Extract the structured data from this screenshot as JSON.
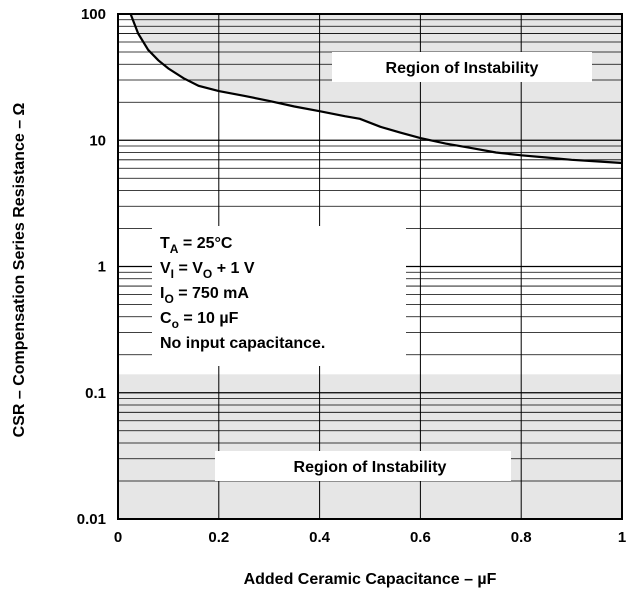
{
  "chart_data": {
    "type": "line",
    "title": "",
    "xlabel": "Added Ceramic Capacitance – µF",
    "ylabel": "CSR – Compensation Series Resistance – Ω",
    "xlim": [
      0,
      1
    ],
    "ylim": [
      0.01,
      100
    ],
    "yscale": "log",
    "grid": true,
    "x_ticks": [
      "0",
      "0.2",
      "0.4",
      "0.6",
      "0.8",
      "1"
    ],
    "y_ticks": [
      "0.01",
      "0.1",
      "1",
      "10",
      "100"
    ],
    "series": [
      {
        "x": [
          0.025,
          0.04,
          0.06,
          0.08,
          0.1,
          0.13,
          0.16,
          0.2,
          0.25,
          0.3,
          0.35,
          0.4,
          0.45,
          0.48,
          0.52,
          0.56,
          0.6,
          0.65,
          0.7,
          0.75,
          0.8,
          0.85,
          0.9,
          0.95,
          1.0
        ],
        "y": [
          100,
          70,
          52,
          43,
          37,
          31,
          27,
          24.5,
          22.5,
          20.5,
          18.5,
          17,
          15.5,
          14.8,
          12.8,
          11.5,
          10.4,
          9.4,
          8.7,
          8.0,
          7.6,
          7.3,
          7.0,
          6.8,
          6.6
        ],
        "color": "#000000"
      }
    ],
    "upper_instability": {
      "label": "Region of Instability",
      "fill": "#e6e6e6"
    },
    "lower_instability": {
      "label": "Region of Instability",
      "fill": "#e6e6e6",
      "y_top": 0.14
    },
    "conditions": [
      {
        "base": "T",
        "sub": "A",
        "rest": " = 25°C"
      },
      {
        "base": "V",
        "sub": "I",
        "rest": " = V",
        "sub2": "O",
        "rest2": " + 1 V"
      },
      {
        "base": "I",
        "sub": "O",
        "rest": " = 750 mA"
      },
      {
        "base": "C",
        "sub": "o",
        "rest": " = 10 µF"
      },
      {
        "base": "No input capacitance.",
        "sub": "",
        "rest": ""
      }
    ]
  }
}
